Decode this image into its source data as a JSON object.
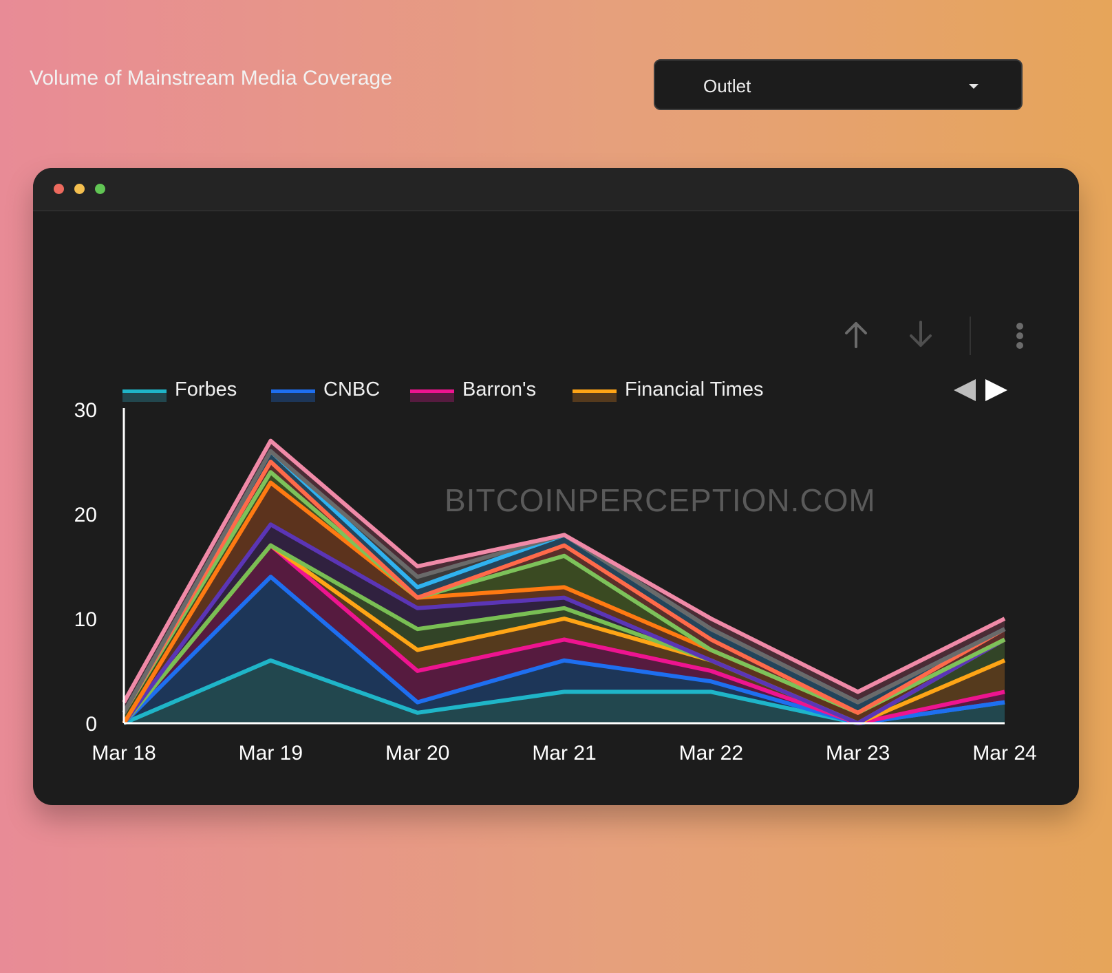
{
  "window": {
    "title": "Volume of Mainstream Media Coverage",
    "dropdown_label": "Outlet"
  },
  "watermark": "BITCOINPERCEPTION.COM",
  "legend": {
    "items": [
      {
        "label": "Forbes",
        "color": "#1fb5c8"
      },
      {
        "label": "CNBC",
        "color": "#1e6ff0"
      },
      {
        "label": "Barron's",
        "color": "#ee1490"
      },
      {
        "label": "Financial Times",
        "color": "#ffa516"
      }
    ]
  },
  "toolbar": {
    "icons": [
      "arrow-up-icon",
      "arrow-down-icon",
      "more-vertical-icon"
    ],
    "pager_icons": [
      "triangle-left-icon",
      "triangle-right-icon"
    ]
  },
  "chart_data": {
    "type": "area",
    "stacked": true,
    "title": "Volume of Mainstream Media Coverage",
    "categories": [
      "Mar 18",
      "Mar 19",
      "Mar 20",
      "Mar 21",
      "Mar 22",
      "Mar 23",
      "Mar 24"
    ],
    "ylim": [
      0,
      30
    ],
    "yticks": [
      0,
      10,
      20,
      30
    ],
    "legend_position": "top-left",
    "series": [
      {
        "name": "Forbes",
        "color": "#1fb5c8",
        "fill": "#22474e",
        "values": [
          0,
          6,
          1,
          3,
          3,
          0,
          2
        ]
      },
      {
        "name": "CNBC",
        "color": "#1e6ff0",
        "fill": "#1d3658",
        "values": [
          0,
          8,
          1,
          3,
          1,
          0,
          0
        ]
      },
      {
        "name": "Barron's",
        "color": "#ee1490",
        "fill": "#561b3f",
        "values": [
          0,
          3,
          3,
          2,
          1,
          0,
          1
        ]
      },
      {
        "name": "Financial Times",
        "color": "#ffa516",
        "fill": "#553a1d",
        "values": [
          0,
          0,
          2,
          2,
          1,
          0,
          3
        ]
      },
      {
        "color": "#79bf54",
        "fill": "#324427",
        "values": [
          0,
          0,
          2,
          1,
          0,
          0,
          2
        ]
      },
      {
        "color": "#5b35b6",
        "fill": "#30213f",
        "values": [
          0,
          2,
          2,
          1,
          0,
          0,
          0
        ]
      },
      {
        "color": "#ff7a12",
        "fill": "#5c331d",
        "values": [
          0,
          4,
          1,
          1,
          1,
          1,
          0
        ]
      },
      {
        "color": "#7dc25a",
        "fill": "#3a4a22",
        "values": [
          1,
          1,
          0,
          3,
          0,
          0,
          0
        ]
      },
      {
        "color": "#ff6a4a",
        "fill": "#5a2e2a",
        "values": [
          0,
          1,
          0,
          1,
          1,
          0,
          1
        ]
      },
      {
        "color": "#2fb2f0",
        "fill": "#24445a",
        "values": [
          0,
          1,
          1,
          1,
          1,
          1,
          0
        ]
      },
      {
        "color": "#6a6a6a",
        "fill": "#3b3b3b",
        "values": [
          0,
          0,
          1,
          0,
          0,
          0,
          0
        ]
      },
      {
        "color": "#f08aa8",
        "fill": "#4a2c35",
        "values": [
          1,
          1,
          1,
          0,
          1,
          1,
          1
        ]
      }
    ]
  }
}
